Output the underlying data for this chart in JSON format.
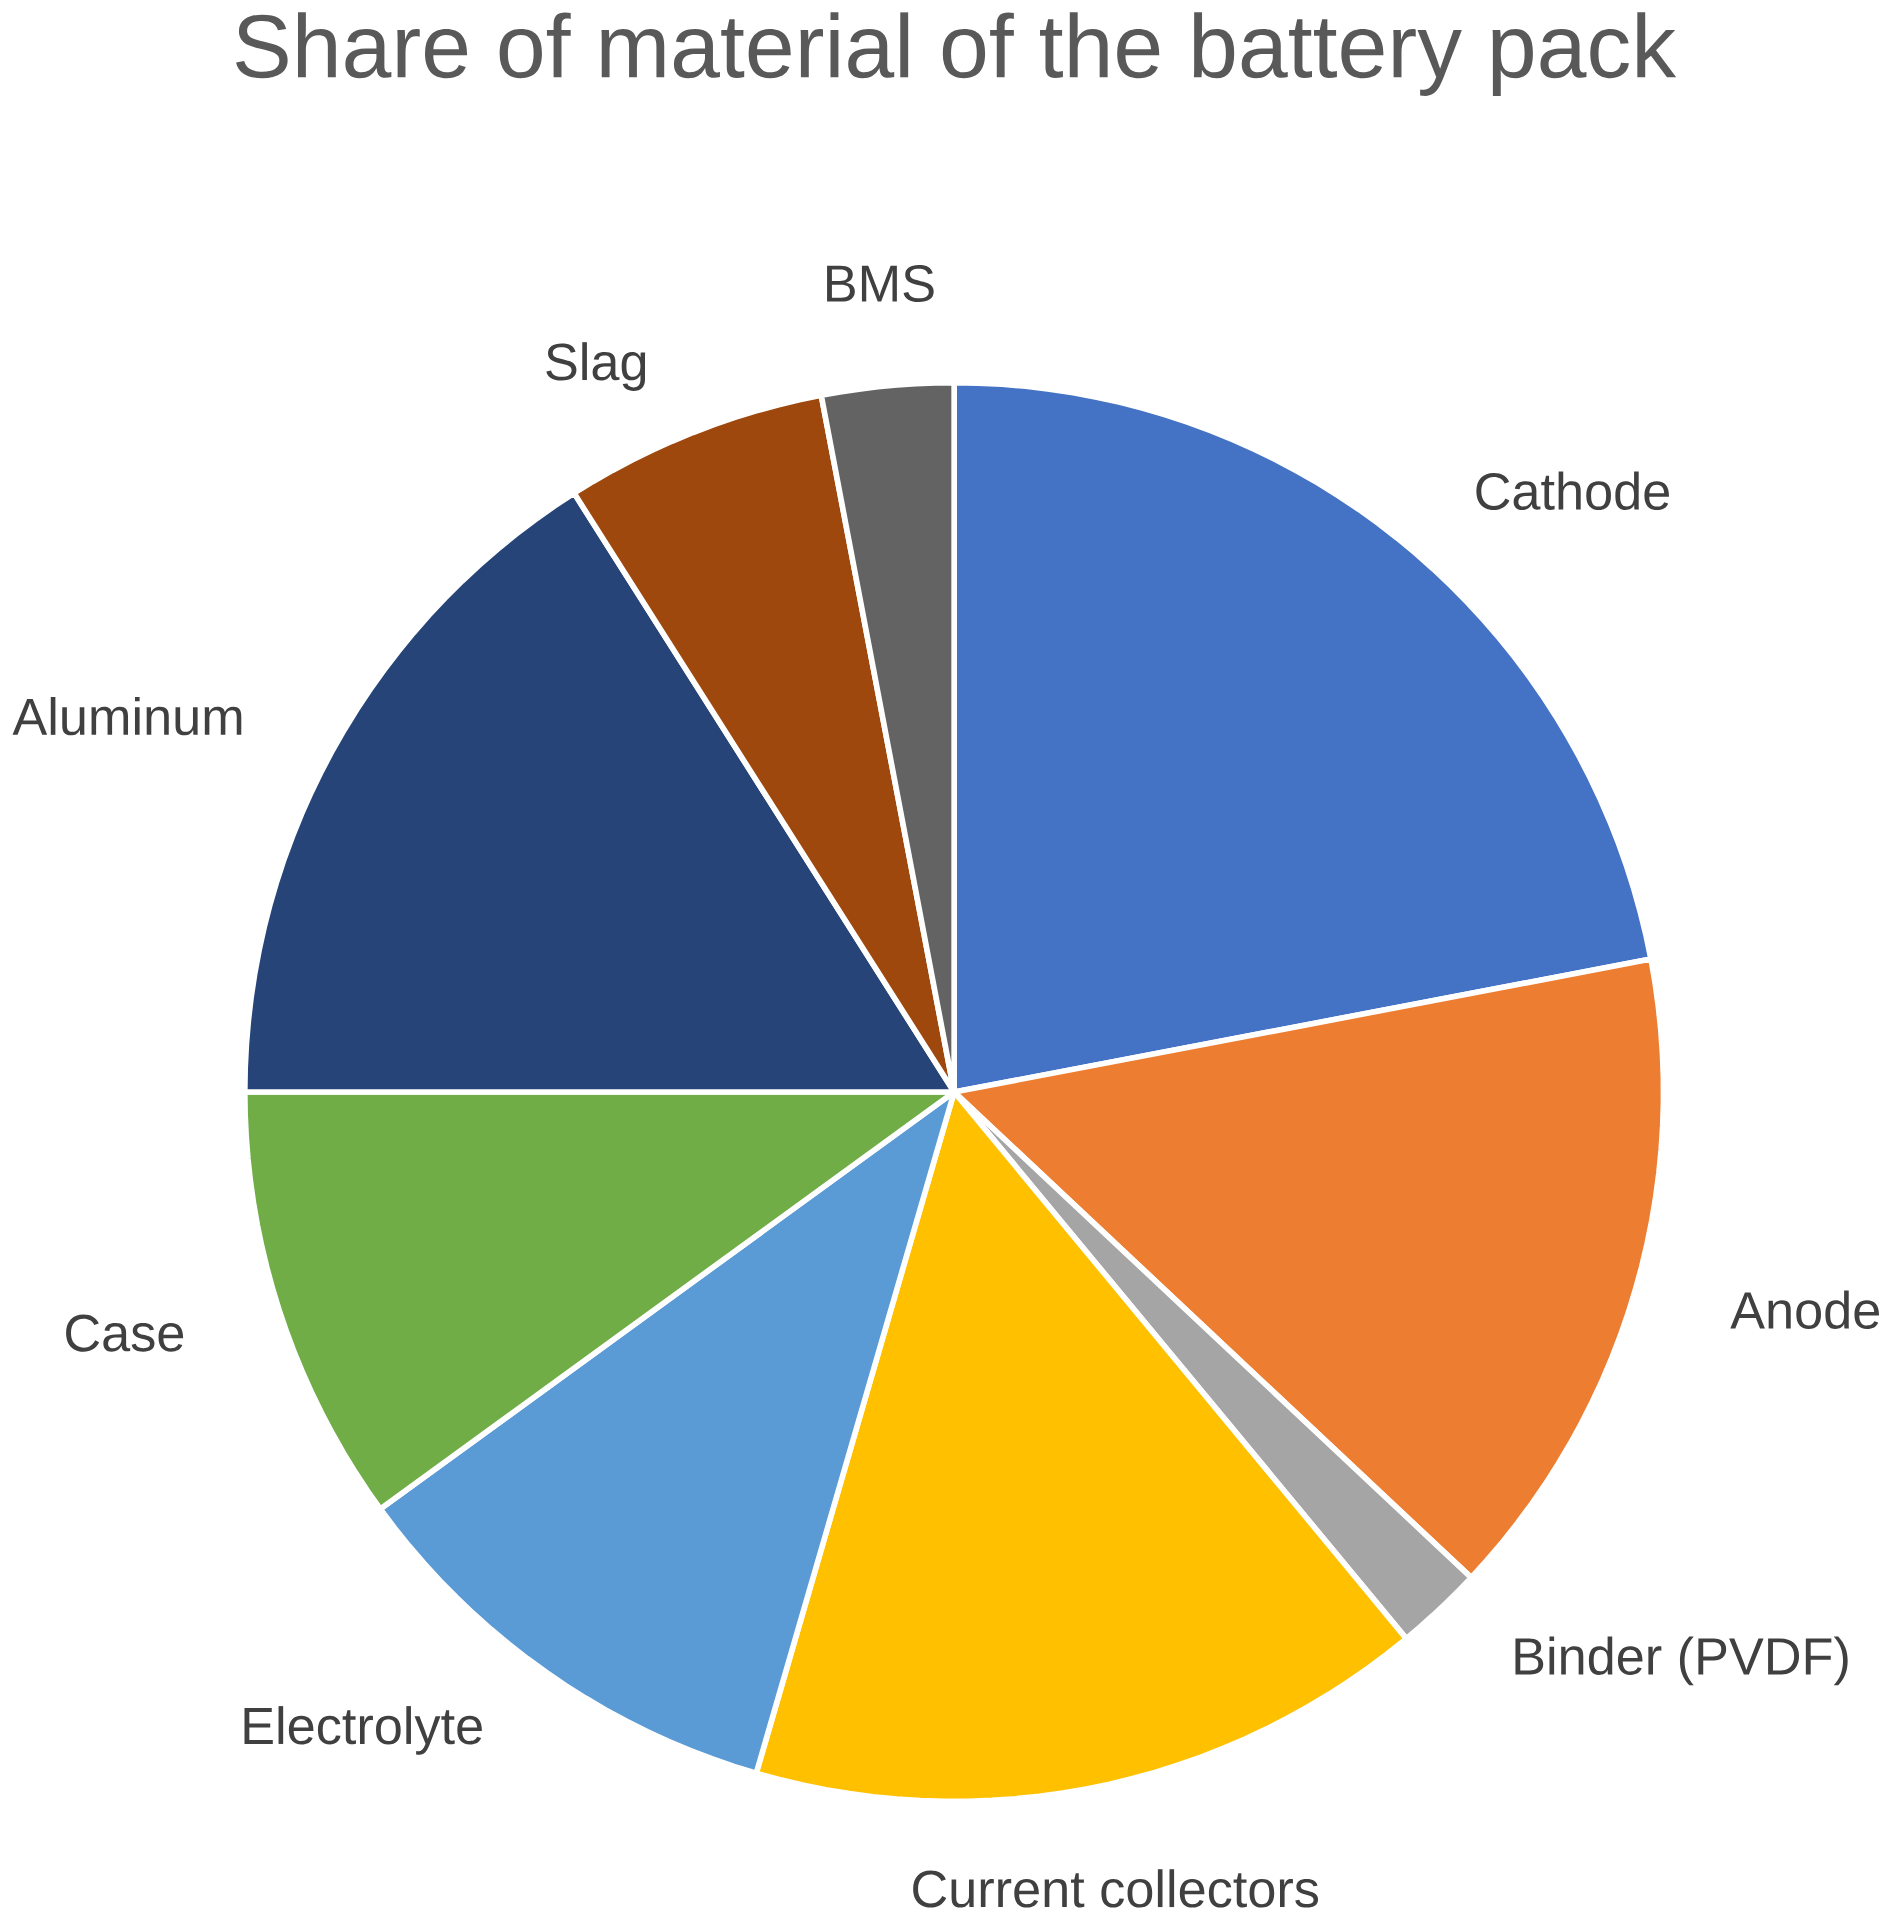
{
  "chart_data": {
    "type": "pie",
    "title": "Share of material of the battery pack",
    "categories": [
      "Cathode",
      "Anode",
      "Binder (PVDF)",
      "Current collectors",
      "Electrolyte",
      "Case",
      "Aluminum",
      "Slag",
      "BMS"
    ],
    "values": [
      22,
      15,
      2,
      15.5,
      10.5,
      10,
      16,
      6,
      3
    ],
    "colors": [
      "#4472c4",
      "#ed7d31",
      "#a5a5a5",
      "#ffc000",
      "#5b9bd5",
      "#70ad47",
      "#264478",
      "#9e480e",
      "#636363"
    ]
  }
}
